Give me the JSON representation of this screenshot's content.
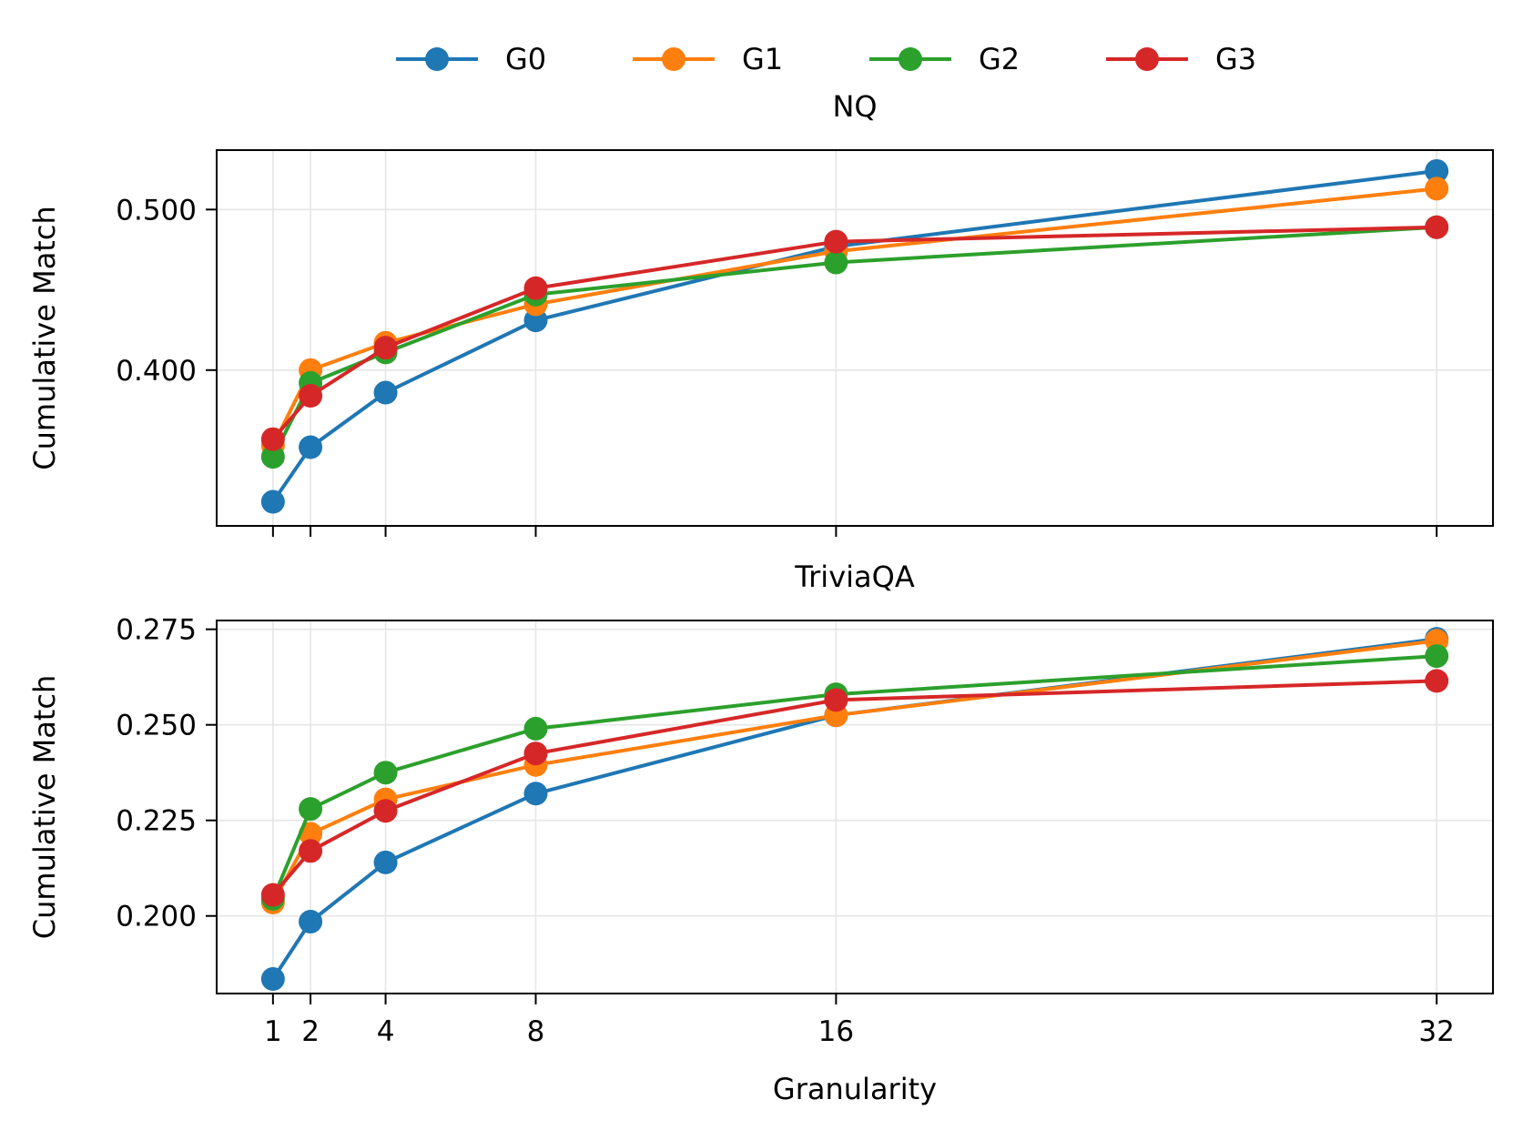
{
  "chart_data": {
    "type": "line",
    "legend": {
      "placement": "top-center",
      "entries": [
        "G0",
        "G1",
        "G2",
        "G3"
      ]
    },
    "colors": {
      "G0": "#1f77b4",
      "G1": "#ff7f0e",
      "G2": "#2ca02c",
      "G3": "#d62728"
    },
    "x_values": [
      1,
      2,
      4,
      8,
      16,
      32
    ],
    "x_tick_labels": [
      "1",
      "2",
      "4",
      "8",
      "16",
      "32"
    ],
    "xlabel": "Granularity",
    "xlim": [
      -0.5,
      33.5
    ],
    "panels": [
      {
        "title": "NQ",
        "ylabel": "Cumulative Match",
        "ylim": [
          0.303,
          0.537
        ],
        "y_ticks": [
          0.4,
          0.5
        ],
        "y_tick_labels": [
          "0.400",
          "0.500"
        ],
        "show_x_tick_labels": false,
        "grid": true,
        "series": [
          {
            "name": "G0",
            "values": [
              0.318,
              0.352,
              0.386,
              0.431,
              0.477,
              0.524
            ]
          },
          {
            "name": "G1",
            "values": [
              0.353,
              0.4,
              0.417,
              0.441,
              0.474,
              0.513
            ]
          },
          {
            "name": "G2",
            "values": [
              0.346,
              0.392,
              0.411,
              0.447,
              0.467,
              0.489
            ]
          },
          {
            "name": "G3",
            "values": [
              0.357,
              0.384,
              0.414,
              0.451,
              0.48,
              0.489
            ]
          }
        ]
      },
      {
        "title": "TriviaQA",
        "ylabel": "Cumulative Match",
        "ylim": [
          0.1797,
          0.2773
        ],
        "y_ticks": [
          0.2,
          0.225,
          0.25,
          0.275
        ],
        "y_tick_labels": [
          "0.200",
          "0.225",
          "0.250",
          "0.275"
        ],
        "show_x_tick_labels": true,
        "grid": true,
        "series": [
          {
            "name": "G0",
            "values": [
              0.1835,
              0.1985,
              0.214,
              0.232,
              0.2525,
              0.2725
            ]
          },
          {
            "name": "G1",
            "values": [
              0.2035,
              0.2215,
              0.2305,
              0.2395,
              0.2525,
              0.272
            ]
          },
          {
            "name": "G2",
            "values": [
              0.2045,
              0.228,
              0.2375,
              0.249,
              0.258,
              0.268
            ]
          },
          {
            "name": "G3",
            "values": [
              0.2055,
              0.217,
              0.2275,
              0.2425,
              0.2565,
              0.2615
            ]
          }
        ]
      }
    ]
  }
}
